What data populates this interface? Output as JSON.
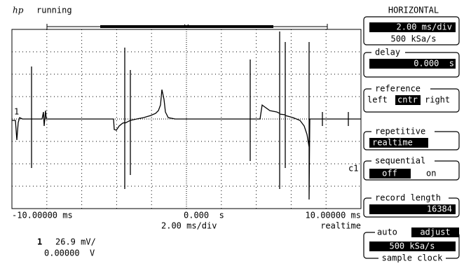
{
  "status": {
    "logo": "hp",
    "state": "running"
  },
  "panel": {
    "title": "HORIZONTAL",
    "timebase": {
      "value": "2.00 ms/div",
      "sample_rate": "500 kSa/s"
    },
    "delay": {
      "label": "delay",
      "value": "0.000  s"
    },
    "reference": {
      "label": "reference",
      "left": "left",
      "center": "cntr",
      "right": "right"
    },
    "repetitive": {
      "label": "repetitive",
      "value": "realtime"
    },
    "sequential": {
      "label": "sequential",
      "off": "off",
      "on": "on"
    },
    "record_length": {
      "label": "record length",
      "value": "16384"
    },
    "sample_clock": {
      "auto": "auto",
      "adjust": "adjust",
      "value": "500 kSa/s",
      "label": "sample clock"
    }
  },
  "screen": {
    "left_time": "-10.00000 ms",
    "center_time": "0.000  s",
    "right_time": "10.00000 ms",
    "scale": "2.00 ms/div",
    "mode": "realtime",
    "marker": "c1"
  },
  "channel": {
    "number": "1",
    "scale": "26.9 mV/",
    "offset": "0.00000  V"
  }
}
